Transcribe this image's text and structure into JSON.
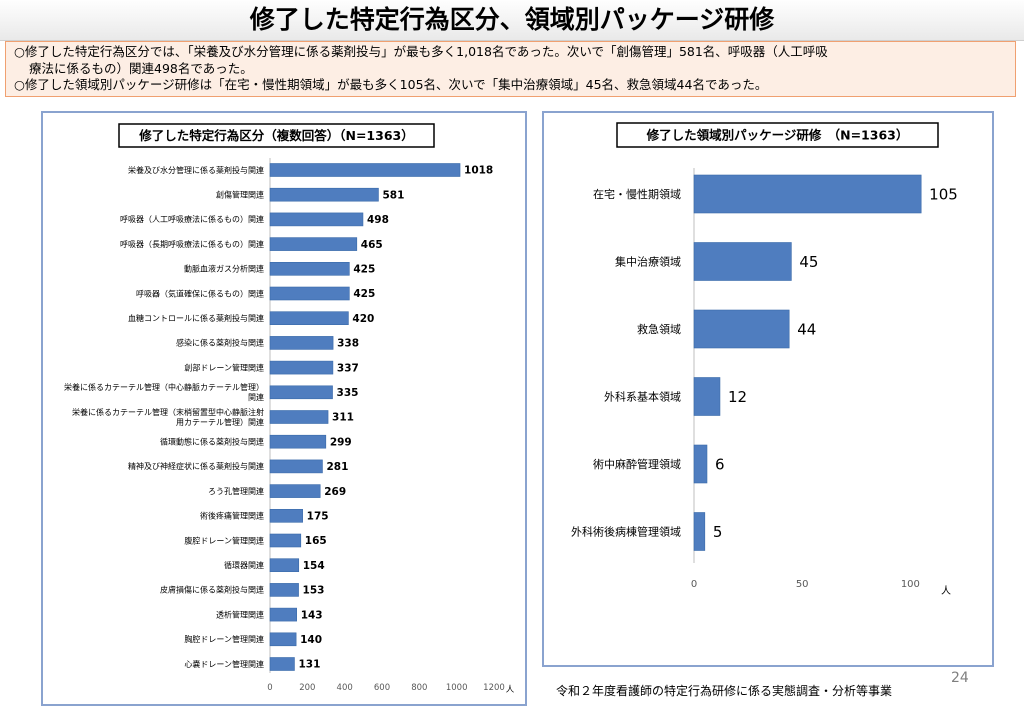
{
  "page": {
    "title": "修了した特定行為区分、領域別パッケージ研修",
    "summary_lines": [
      "○修了した特定行為区分では、「栄養及び水分管理に係る薬剤投与」が最も多く1,018名であった。次いで「創傷管理」581名、呼吸器（人工呼吸",
      "療法に係るもの）関連498名であった。",
      "○修了した領域別パッケージ研修は「在宅・慢性期領域」が最も多く105名、次いで「集中治療領域」45名、救急領域44名であった。"
    ],
    "footer": "令和２年度看護師の特定行為研修に係る実態調査・分析等事業",
    "page_number": "24"
  },
  "colors": {
    "bar": "#4f7dbf",
    "bar_edge": "#3a6aa9",
    "panel_border": "#8aa3cf",
    "summary_bg": "#fdeee4",
    "summary_border": "#f0a070"
  },
  "chart_data": [
    {
      "type": "bar",
      "orientation": "horizontal",
      "title": "修了した特定行為区分（複数回答）（N=1363）",
      "unit": "人",
      "xlim": [
        0,
        1200
      ],
      "x_ticks": [
        "0",
        "200",
        "400",
        "600",
        "800",
        "1000",
        "1200"
      ],
      "tick_values": [
        0,
        200,
        400,
        600,
        800,
        1000,
        1200
      ],
      "categories": [
        [
          "栄養及び水分管理に係る薬剤投与関連"
        ],
        [
          "創傷管理関連"
        ],
        [
          "呼吸器（人工呼吸療法に係るもの）関連"
        ],
        [
          "呼吸器（長期呼吸療法に係るもの）関連"
        ],
        [
          "動脈血液ガス分析関連"
        ],
        [
          "呼吸器（気道確保に係るもの）関連"
        ],
        [
          "血糖コントロールに係る薬剤投与関連"
        ],
        [
          "感染に係る薬剤投与関連"
        ],
        [
          "創部ドレーン管理関連"
        ],
        [
          "栄養に係るカテーテル管理（中心静脈カテーテル管理）",
          "関連"
        ],
        [
          "栄養に係るカテーテル管理（末梢留置型中心静脈注射",
          "用カテーテル管理）関連"
        ],
        [
          "循環動態に係る薬剤投与関連"
        ],
        [
          "精神及び神経症状に係る薬剤投与関連"
        ],
        [
          "ろう孔管理関連"
        ],
        [
          "術後疼痛管理関連"
        ],
        [
          "腹腔ドレーン管理関連"
        ],
        [
          "循環器関連"
        ],
        [
          "皮膚損傷に係る薬剤投与関連"
        ],
        [
          "透析管理関連"
        ],
        [
          "胸腔ドレーン管理関連"
        ],
        [
          "心嚢ドレーン管理関連"
        ]
      ],
      "values": [
        1018,
        581,
        498,
        465,
        425,
        425,
        420,
        338,
        337,
        335,
        311,
        299,
        281,
        269,
        175,
        165,
        154,
        153,
        143,
        140,
        131
      ],
      "data_labels": [
        "1018",
        "581",
        "498",
        "465",
        "425",
        "425",
        "420",
        "338",
        "337",
        "335",
        "311",
        "299",
        "281",
        "269",
        "175",
        "165",
        "154",
        "153",
        "143",
        "140",
        "131"
      ]
    },
    {
      "type": "bar",
      "orientation": "horizontal",
      "title": "修了した領域別パッケージ研修　（N=1363）",
      "unit": "人",
      "xlim": [
        0,
        110
      ],
      "x_ticks": [
        "0",
        "50",
        "100"
      ],
      "tick_values": [
        0,
        50,
        100
      ],
      "categories": [
        [
          "在宅・慢性期領域"
        ],
        [
          "集中治療領域"
        ],
        [
          "救急領域"
        ],
        [
          "外科系基本領域"
        ],
        [
          "術中麻酔管理領域"
        ],
        [
          "外科術後病棟管理領域"
        ]
      ],
      "values": [
        105,
        45,
        44,
        12,
        6,
        5
      ],
      "data_labels": [
        "105",
        "45",
        "44",
        "12",
        "6",
        "5"
      ]
    }
  ]
}
